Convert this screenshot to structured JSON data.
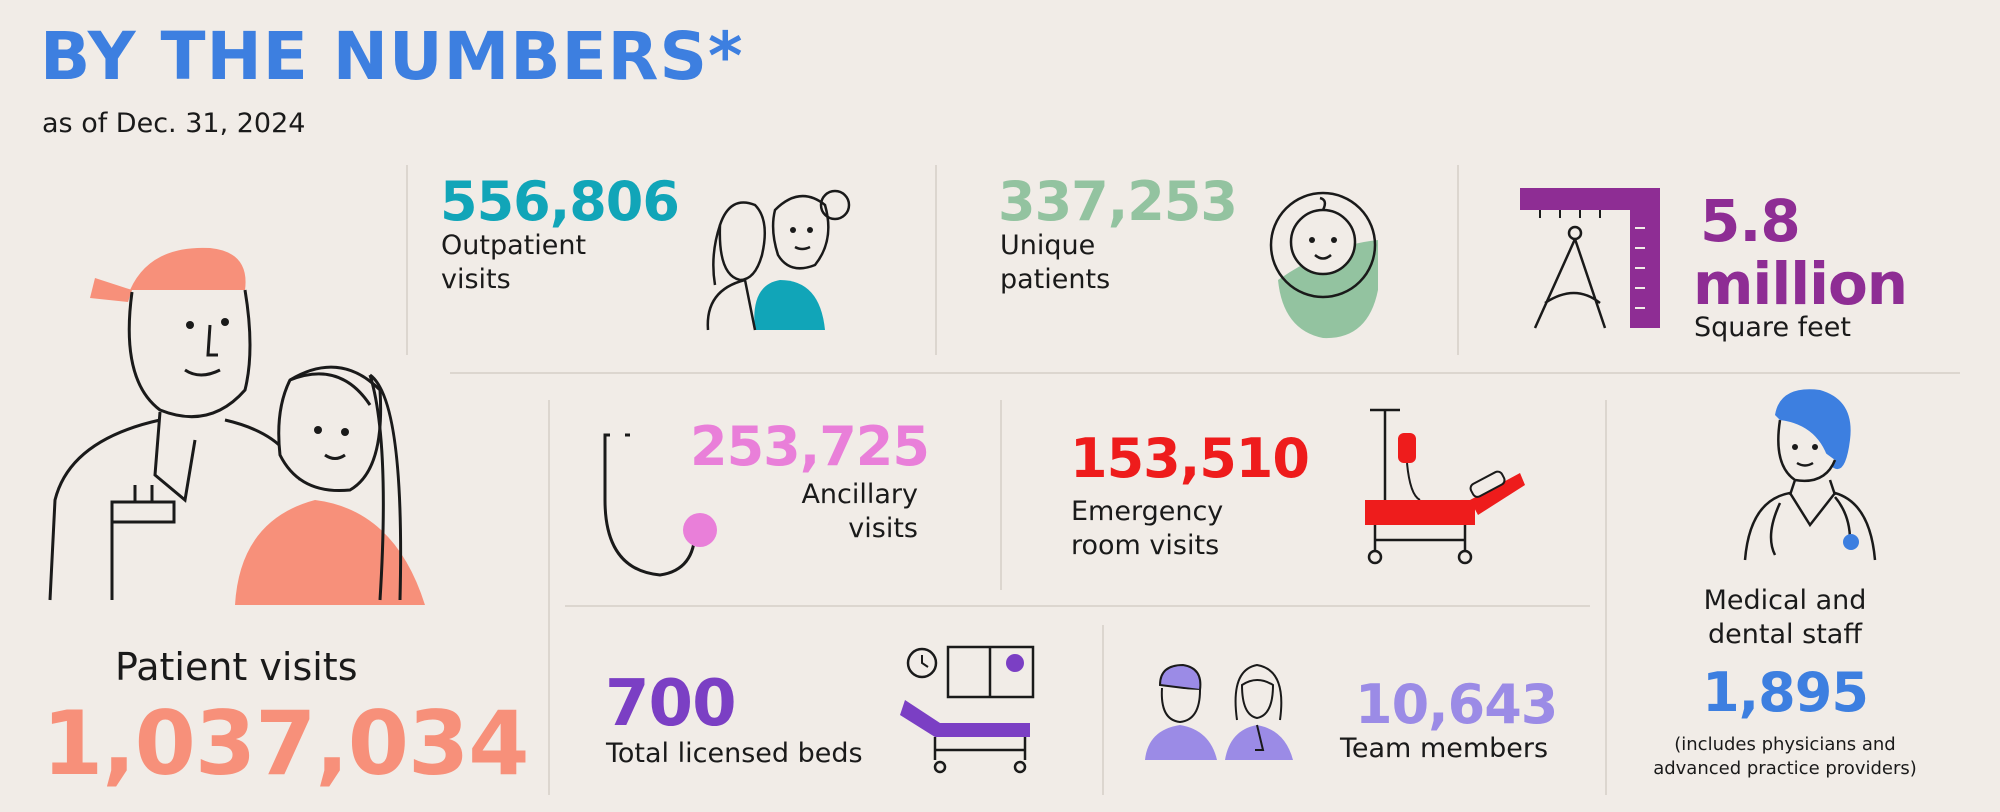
{
  "header": {
    "title": "BY THE NUMBERS*",
    "subtitle": "as of Dec. 31, 2024"
  },
  "stats": {
    "patient_visits": {
      "label": "Patient visits",
      "value": "1,037,034",
      "color": "#f7907a"
    },
    "outpatient": {
      "value": "556,806",
      "label_1": "Outpatient",
      "label_2": "visits",
      "color": "#11a5b8"
    },
    "unique": {
      "value": "337,253",
      "label_1": "Unique",
      "label_2": "patients",
      "color": "#93c3a0"
    },
    "square_feet": {
      "value_1": "5.8",
      "value_2": "million",
      "label": "Square feet",
      "color": "#8e2d94"
    },
    "ancillary": {
      "value": "253,725",
      "label_1": "Ancillary",
      "label_2": "visits",
      "color": "#e97fd9"
    },
    "emergency": {
      "value": "153,510",
      "label_1": "Emergency",
      "label_2": "room visits",
      "color": "#ee1c1c"
    },
    "staff": {
      "label_1": "Medical and",
      "label_2": "dental staff",
      "value": "1,895",
      "note_1": "(includes physicians and",
      "note_2": "advanced practice providers)",
      "color": "#3d7fe0"
    },
    "beds": {
      "value": "700",
      "label": "Total licensed beds",
      "color": "#7b3fc4"
    },
    "team": {
      "value": "10,643",
      "label": "Team members",
      "color": "#9b8be6"
    }
  },
  "icons": {
    "patient_visits": "patient-and-nurse-icon",
    "outpatient": "two-women-icon",
    "unique": "swaddled-baby-icon",
    "square_feet": "ruler-compass-icon",
    "ancillary": "stethoscope-icon",
    "emergency": "hospital-gurney-iv-icon",
    "staff": "surgeon-icon",
    "beds": "hospital-bed-icon",
    "team": "two-caregivers-icon"
  }
}
